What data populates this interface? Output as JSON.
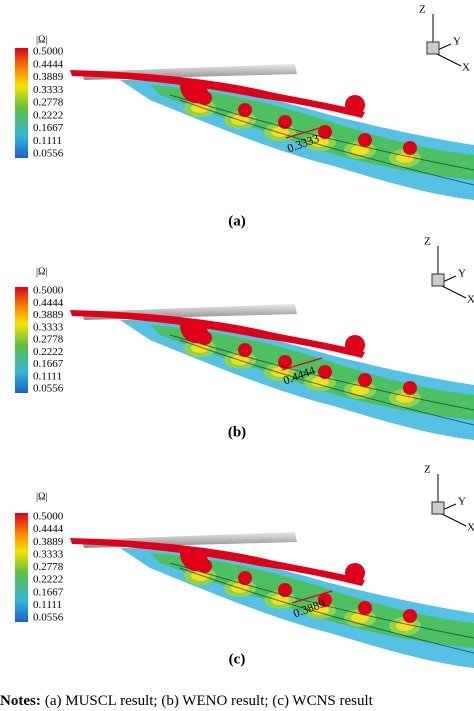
{
  "panels": [
    {
      "legend_title": "|Ω|",
      "legend_labels": [
        "0.5000",
        "0.4444",
        "0.3889",
        "0.3333",
        "0.2778",
        "0.2222",
        "0.1667",
        "0.1111",
        "0.0556"
      ],
      "annotation": "0.3333",
      "axes": [
        "Z",
        "Y",
        "X"
      ],
      "caption": "(a)"
    },
    {
      "legend_title": "|Ω|",
      "legend_labels": [
        "0.5000",
        "0.4444",
        "0.3889",
        "0.3333",
        "0.2778",
        "0.2222",
        "0.1667",
        "0.1111",
        "0.0556"
      ],
      "annotation": "0.4444",
      "axes": [
        "Z",
        "Y",
        "X"
      ],
      "caption": "(b)"
    },
    {
      "legend_title": "|Ω|",
      "legend_labels": [
        "0.5000",
        "0.4444",
        "0.3889",
        "0.3333",
        "0.2778",
        "0.2222",
        "0.1667",
        "0.1111",
        "0.0556"
      ],
      "annotation": "0.3889",
      "axes": [
        "Z",
        "Y",
        "X"
      ],
      "caption": "(c)"
    }
  ],
  "notes": {
    "label": "Notes:",
    "text": "(a) MUSCL result; (b) WENO result; (c) WCNS result"
  }
}
